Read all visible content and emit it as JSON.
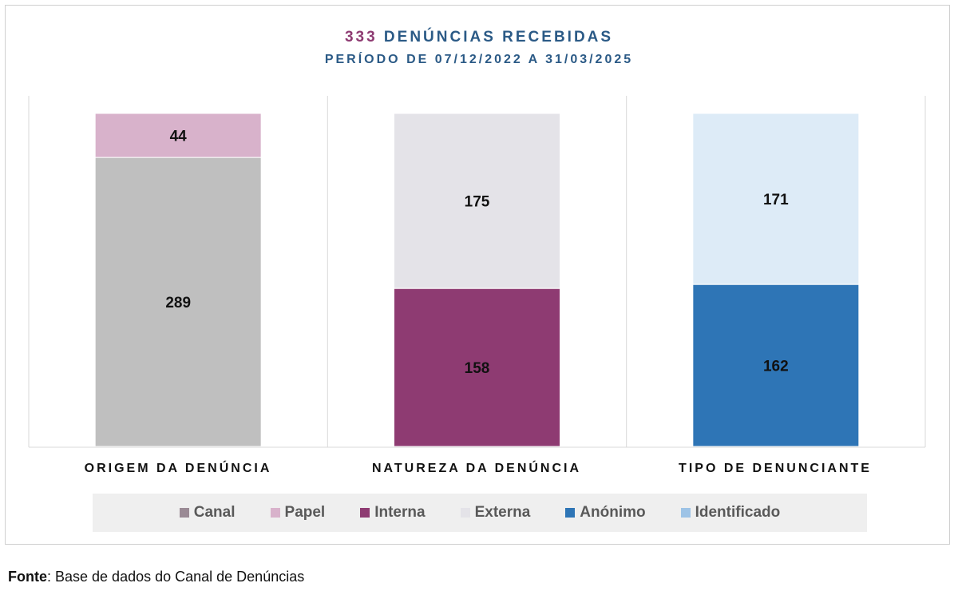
{
  "title": {
    "count": "333",
    "main": "DENÚNCIAS RECEBIDAS",
    "subtitle": "PERÍODO DE 07/12/2022 A 31/03/2025"
  },
  "chart_data": {
    "type": "bar",
    "stacked": true,
    "normalized": true,
    "categories": [
      "ORIGEM DA DENÚNCIA",
      "NATUREZA DA DENÚNCIA",
      "TIPO DE DENUNCIANTE"
    ],
    "series": [
      {
        "name": "Canal",
        "values": [
          289,
          null,
          null
        ],
        "color": "#bfbfbf"
      },
      {
        "name": "Papel",
        "values": [
          44,
          null,
          null
        ],
        "color": "#d8b2cb"
      },
      {
        "name": "Interna",
        "values": [
          null,
          158,
          null
        ],
        "color": "#8e3b72"
      },
      {
        "name": "Externa",
        "values": [
          null,
          175,
          null
        ],
        "color": "#e4e3e8"
      },
      {
        "name": "Anónimo",
        "values": [
          null,
          null,
          162
        ],
        "color": "#2e75b6"
      },
      {
        "name": "Identificado",
        "values": [
          null,
          null,
          171
        ],
        "color": "#ddebf7"
      }
    ],
    "legend_swatch_colors": [
      "#9a8a95",
      "#d8b2cb",
      "#8e3b72",
      "#e4e3e8",
      "#2e75b6",
      "#9dc3e6"
    ],
    "legend_position": "bottom",
    "grid": false
  },
  "source": {
    "label": "Fonte",
    "text": ": Base de dados do Canal de Denúncias"
  }
}
